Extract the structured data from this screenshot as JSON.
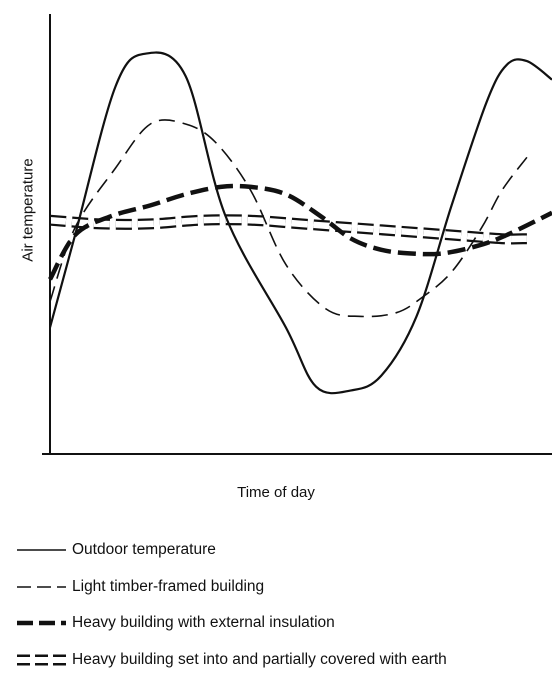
{
  "chart_data": {
    "type": "line",
    "title": "",
    "xlabel": "Time of day",
    "ylabel": "Air temperature",
    "x_ticks": [],
    "y_ticks": [],
    "grid": false,
    "legend_position": "bottom",
    "x_range": [
      0,
      1
    ],
    "y_range": [
      0,
      1
    ],
    "series": [
      {
        "name": "Outdoor temperature",
        "style": "solid-thin",
        "x": [
          0.0,
          0.05,
          0.13,
          0.19,
          0.27,
          0.35,
          0.47,
          0.53,
          0.6,
          0.66,
          0.73,
          0.8,
          0.87,
          0.91,
          0.95,
          1.0
        ],
        "y": [
          0.25,
          0.5,
          0.9,
          0.99,
          0.93,
          0.55,
          0.25,
          0.09,
          0.08,
          0.12,
          0.28,
          0.58,
          0.86,
          0.96,
          0.97,
          0.92
        ]
      },
      {
        "name": "Light timber-framed building",
        "style": "dashed-thin",
        "x": [
          0.0,
          0.05,
          0.13,
          0.2,
          0.27,
          0.33,
          0.4,
          0.47,
          0.55,
          0.62,
          0.69,
          0.74,
          0.8,
          0.86,
          0.9,
          0.95
        ],
        "y": [
          0.32,
          0.52,
          0.68,
          0.8,
          0.8,
          0.75,
          0.62,
          0.42,
          0.3,
          0.28,
          0.29,
          0.33,
          0.4,
          0.52,
          0.62,
          0.71
        ]
      },
      {
        "name": "Heavy building with external insulation",
        "style": "dashed-thick",
        "x": [
          0.0,
          0.05,
          0.12,
          0.2,
          0.27,
          0.34,
          0.4,
          0.47,
          0.54,
          0.6,
          0.66,
          0.72,
          0.78,
          0.85,
          0.91,
          1.0
        ],
        "y": [
          0.38,
          0.5,
          0.55,
          0.58,
          0.61,
          0.63,
          0.63,
          0.61,
          0.55,
          0.49,
          0.46,
          0.45,
          0.45,
          0.47,
          0.5,
          0.56
        ]
      },
      {
        "name": "Heavy building set into and partially covered with earth",
        "style": "hollow-blocks",
        "x": [
          0.0,
          0.1,
          0.2,
          0.3,
          0.4,
          0.5,
          0.6,
          0.7,
          0.8,
          0.9,
          0.95
        ],
        "y": [
          0.54,
          0.53,
          0.53,
          0.54,
          0.54,
          0.53,
          0.52,
          0.51,
          0.5,
          0.49,
          0.49
        ]
      }
    ]
  }
}
